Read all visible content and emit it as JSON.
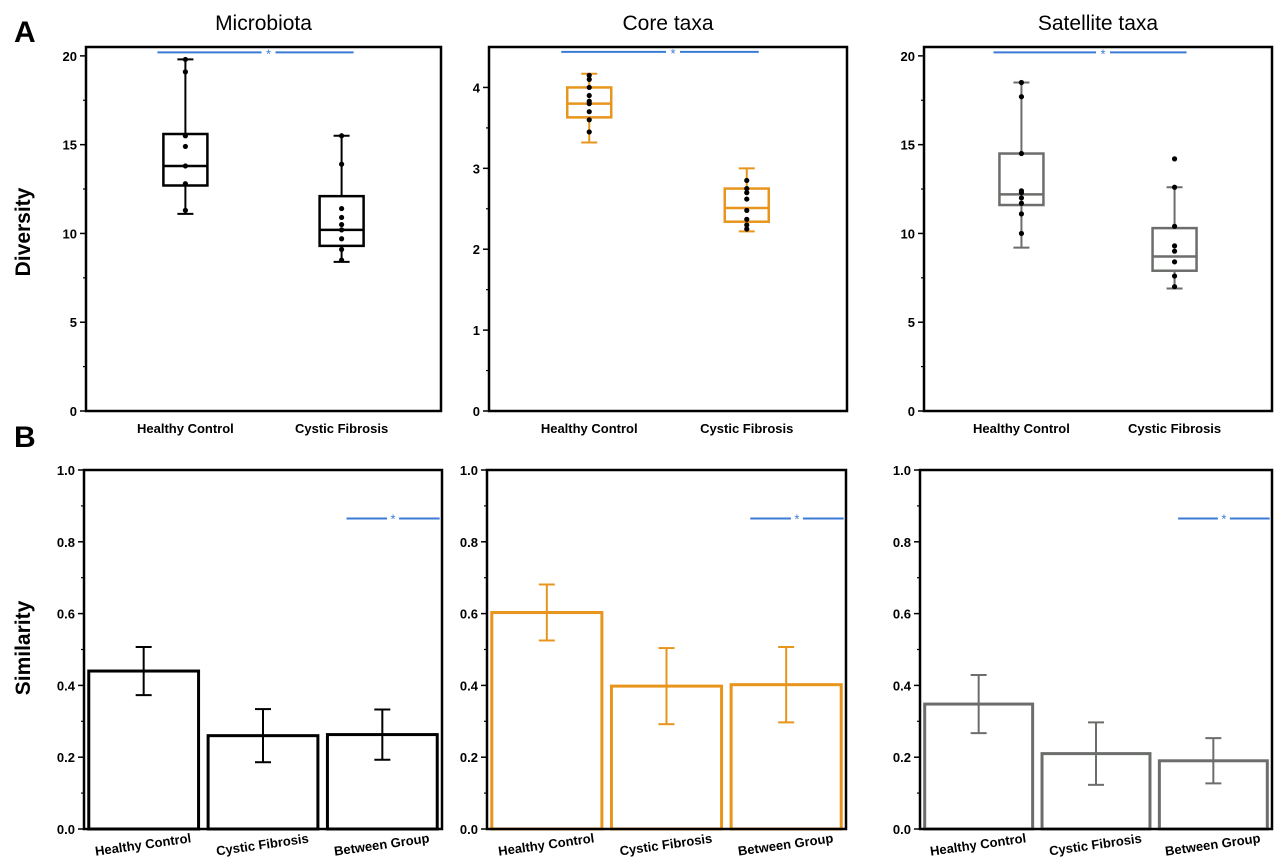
{
  "figure": {
    "panel_letters": [
      "A",
      "B"
    ],
    "y_labels": {
      "diversity": "Diversity",
      "similarity": "Similarity"
    },
    "colors": {
      "microbiota": "#000000",
      "core": "#e8951d",
      "satellite": "#6b6e6a",
      "significance": "#3a7bd5",
      "points": "#000000"
    }
  },
  "chart_data": [
    {
      "type": "box",
      "panel": "A",
      "title": "Microbiota",
      "ylabel": "Diversity",
      "ylim": [
        0,
        20.5
      ],
      "yticks": [
        0,
        5,
        10,
        15,
        20
      ],
      "categories": [
        "Healthy Control",
        "Cystic Fibrosis"
      ],
      "color_key": "microbiota",
      "boxes": [
        {
          "min": 11.1,
          "q1": 12.7,
          "median": 13.8,
          "q3": 15.6,
          "max": 19.8,
          "points": [
            11.3,
            12.8,
            13.8,
            14.9,
            15.5,
            19.1,
            19.8
          ]
        },
        {
          "min": 8.4,
          "q1": 9.3,
          "median": 10.2,
          "q3": 12.1,
          "max": 15.5,
          "points": [
            8.5,
            9.1,
            9.7,
            10.2,
            10.5,
            10.9,
            11.4,
            13.9,
            15.5
          ]
        }
      ],
      "significance": {
        "label": "*",
        "y": 20.2
      }
    },
    {
      "type": "box",
      "panel": "A",
      "title": "Core taxa",
      "ylabel": "",
      "ylim": [
        0,
        4.5
      ],
      "yticks": [
        0,
        1,
        2,
        3,
        4
      ],
      "categories": [
        "Healthy Control",
        "Cystic Fibrosis"
      ],
      "color_key": "core",
      "boxes": [
        {
          "min": 3.32,
          "q1": 3.63,
          "median": 3.8,
          "q3": 4.0,
          "max": 4.17,
          "points": [
            3.45,
            3.6,
            3.7,
            3.8,
            3.83,
            3.9,
            4.0,
            4.1,
            4.15
          ]
        },
        {
          "min": 2.22,
          "q1": 2.34,
          "median": 2.51,
          "q3": 2.75,
          "max": 3.0,
          "points": [
            2.25,
            2.3,
            2.37,
            2.48,
            2.62,
            2.7,
            2.75,
            2.85
          ]
        }
      ],
      "significance": {
        "label": "*",
        "y": 4.44
      }
    },
    {
      "type": "box",
      "panel": "A",
      "title": "Satellite taxa",
      "ylabel": "",
      "ylim": [
        0,
        20.5
      ],
      "yticks": [
        0,
        5,
        10,
        15,
        20
      ],
      "categories": [
        "Healthy Control",
        "Cystic Fibrosis"
      ],
      "color_key": "satellite",
      "boxes": [
        {
          "min": 9.2,
          "q1": 11.6,
          "median": 12.2,
          "q3": 14.5,
          "max": 18.5,
          "points": [
            10.0,
            11.1,
            11.7,
            12.0,
            12.3,
            12.4,
            14.5,
            17.7,
            18.5
          ]
        },
        {
          "min": 6.9,
          "q1": 7.9,
          "median": 8.7,
          "q3": 10.3,
          "max": 12.6,
          "points": [
            7.0,
            7.6,
            8.4,
            9.0,
            9.3,
            10.4,
            12.6,
            14.2
          ]
        }
      ],
      "significance": {
        "label": "*",
        "y": 20.2
      }
    },
    {
      "type": "bar",
      "panel": "B",
      "title": "",
      "ylabel": "Similarity",
      "ylim": [
        0,
        1.0
      ],
      "yticks": [
        "0.0",
        "0.2",
        "0.4",
        "0.6",
        "0.8",
        "1.0"
      ],
      "categories": [
        "Healthy Control",
        "Cystic Fibrosis",
        "Between Group"
      ],
      "color_key": "microbiota",
      "values": [
        0.44,
        0.26,
        0.263
      ],
      "errors": [
        0.067,
        0.074,
        0.07
      ],
      "significance": {
        "label": "*",
        "y": 0.865,
        "span": [
          2.2,
          2.98
        ]
      }
    },
    {
      "type": "bar",
      "panel": "B",
      "title": "",
      "ylabel": "",
      "ylim": [
        0,
        1.0
      ],
      "yticks": [
        "0.0",
        "0.2",
        "0.4",
        "0.6",
        "0.8",
        "1.0"
      ],
      "categories": [
        "Healthy Control",
        "Cystic Fibrosis",
        "Between Group"
      ],
      "color_key": "core",
      "values": [
        0.603,
        0.398,
        0.402
      ],
      "errors": [
        0.078,
        0.106,
        0.105
      ],
      "significance": {
        "label": "*",
        "y": 0.865,
        "span": [
          2.2,
          2.98
        ]
      }
    },
    {
      "type": "bar",
      "panel": "B",
      "title": "",
      "ylabel": "",
      "ylim": [
        0,
        1.0
      ],
      "yticks": [
        "0.0",
        "0.2",
        "0.4",
        "0.6",
        "0.8",
        "1.0"
      ],
      "categories": [
        "Healthy Control",
        "Cystic Fibrosis",
        "Between Group"
      ],
      "color_key": "satellite",
      "values": [
        0.348,
        0.21,
        0.19
      ],
      "errors": [
        0.081,
        0.087,
        0.063
      ],
      "significance": {
        "label": "*",
        "y": 0.865,
        "span": [
          2.2,
          2.98
        ]
      }
    }
  ]
}
